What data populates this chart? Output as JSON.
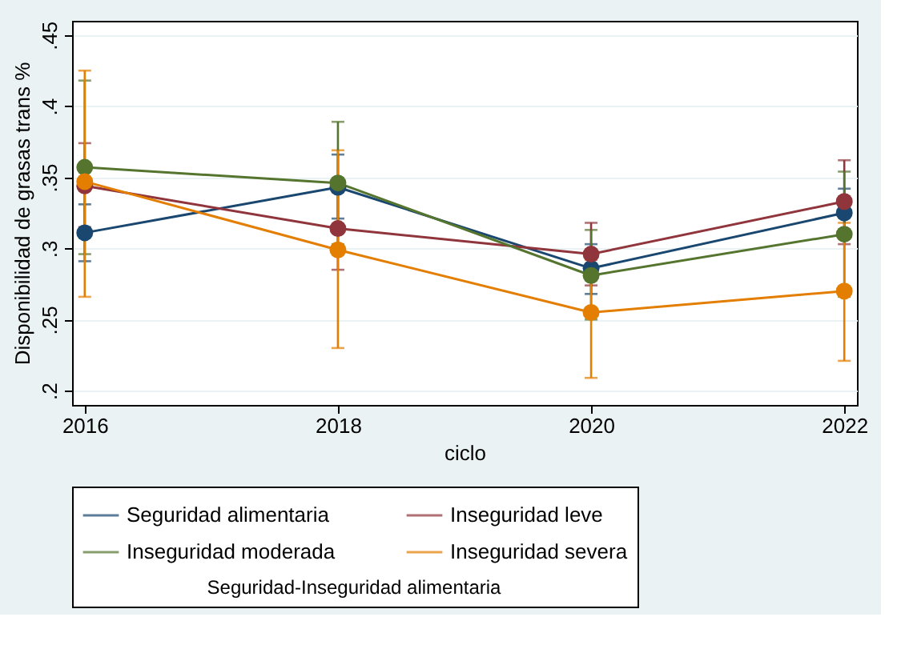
{
  "chart_data": {
    "type": "line",
    "xlabel": "ciclo",
    "ylabel": "Disponibilidad de grasas trans %",
    "legend_title": "Seguridad-Inseguridad alimentaria",
    "x": [
      2016,
      2018,
      2020,
      2022
    ],
    "series": [
      {
        "name": "Seguridad alimentaria",
        "color": "#1a476f",
        "values": [
          0.311,
          0.343,
          0.286,
          0.325
        ],
        "errors": [
          [
            0.291,
            0.331
          ],
          [
            0.321,
            0.366
          ],
          [
            0.268,
            0.303
          ],
          [
            0.308,
            0.342
          ]
        ]
      },
      {
        "name": "Inseguridad leve",
        "color": "#90353b",
        "values": [
          0.344,
          0.314,
          0.296,
          0.333
        ],
        "errors": [
          [
            0.315,
            0.374
          ],
          [
            0.285,
            0.343
          ],
          [
            0.274,
            0.318
          ],
          [
            0.303,
            0.362
          ]
        ]
      },
      {
        "name": "Inseguridad moderada",
        "color": "#55752f",
        "values": [
          0.357,
          0.346,
          0.281,
          0.31
        ],
        "errors": [
          [
            0.296,
            0.418
          ],
          [
            0.303,
            0.389
          ],
          [
            0.25,
            0.313
          ],
          [
            0.266,
            0.354
          ]
        ]
      },
      {
        "name": "Inseguridad severa",
        "color": "#e37e00",
        "values": [
          0.347,
          0.299,
          0.255,
          0.27
        ],
        "errors": [
          [
            0.266,
            0.425
          ],
          [
            0.23,
            0.369
          ],
          [
            0.209,
            0.292
          ],
          [
            0.221,
            0.318
          ]
        ]
      }
    ],
    "xlim": [
      2015.9,
      2022.1
    ],
    "xticks": [
      2016,
      2018,
      2020,
      2022
    ],
    "ylim": [
      0.19,
      0.46
    ],
    "yticks": [
      {
        "value": 0.2,
        "label": ".2"
      },
      {
        "value": 0.25,
        "label": ".25"
      },
      {
        "value": 0.3,
        "label": ".3"
      },
      {
        "value": 0.35,
        "label": ".35"
      },
      {
        "value": 0.4,
        "label": ".4"
      },
      {
        "value": 0.45,
        "label": ".45"
      }
    ],
    "grid": "y",
    "legend": "bottom",
    "marker": "circle",
    "line_style": "solid"
  }
}
